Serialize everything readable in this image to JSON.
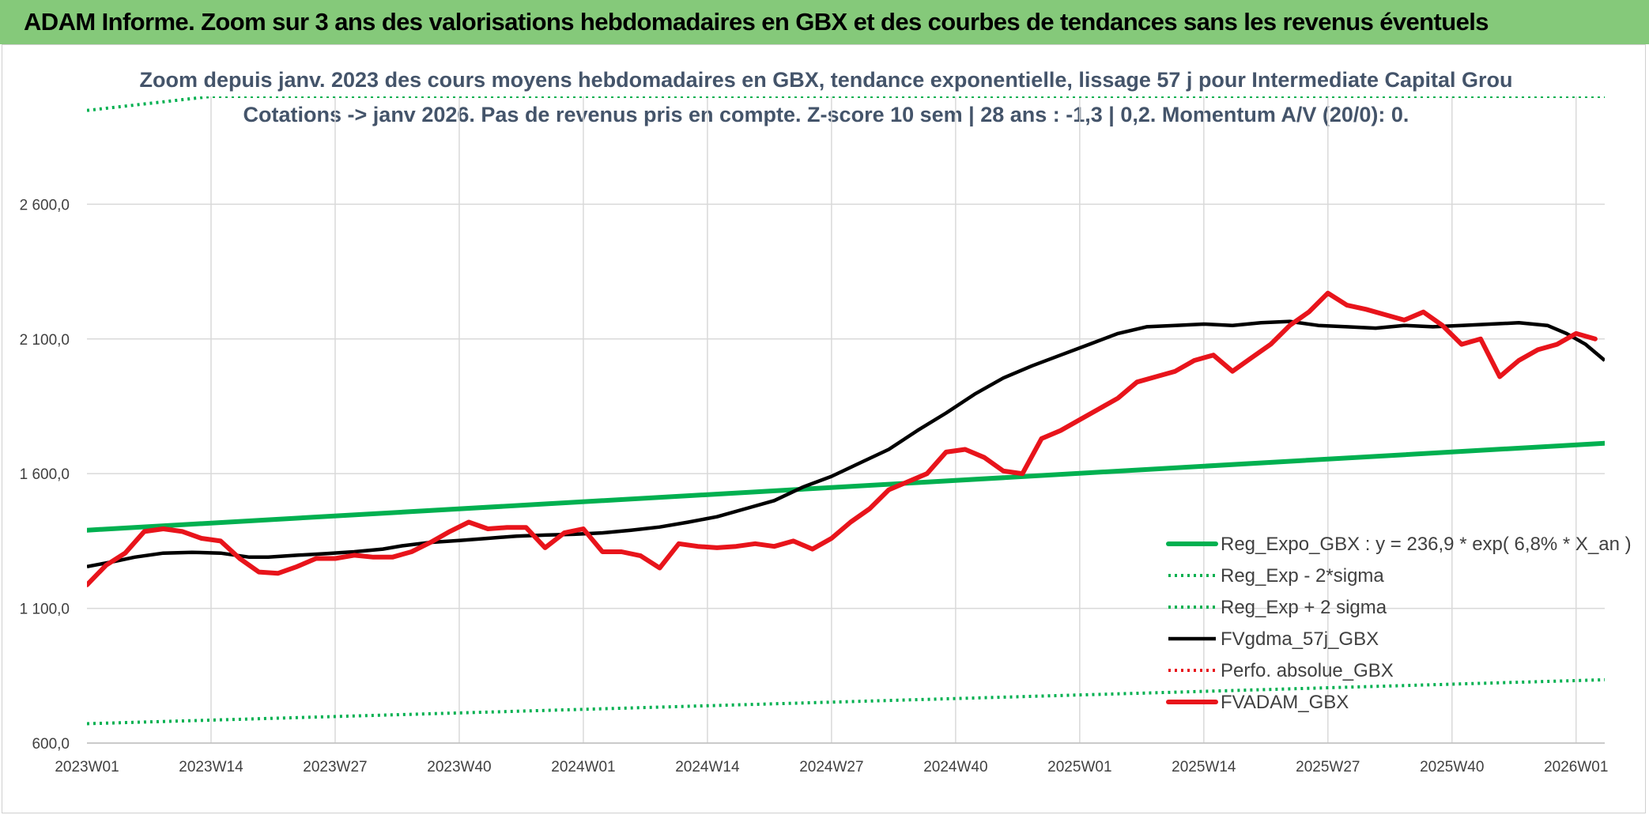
{
  "banner": {
    "title": "ADAM Informe. Zoom sur 3 ans des valorisations hebdomadaires en GBX et des courbes de tendances sans les revenus éventuels"
  },
  "colors": {
    "banner_bg": "#85c97a",
    "green": "#00b050",
    "black": "#000000",
    "red": "#e8141b",
    "grid": "#d9d9d9"
  },
  "chart_data": {
    "type": "line",
    "title_lines": [
      "Zoom depuis janv. 2023 des cours moyens hebdomadaires en GBX, tendance exponentielle, lissage 57 j pour Intermediate Capital Grou",
      "Cotations -> janv 2026. Pas de revenus pris en compte. Z-score 10 sem | 28 ans : -1,3 | 0,2. Momentum A/V (20/0): 0."
    ],
    "x_tick_labels": [
      "2023W01",
      "2023W14",
      "2023W27",
      "2023W40",
      "2024W01",
      "2024W14",
      "2024W27",
      "2024W40",
      "2025W01",
      "2025W14",
      "2025W27",
      "2025W40",
      "2026W01"
    ],
    "y_tick_values": [
      600,
      1100,
      1600,
      2100,
      2600
    ],
    "y_tick_labels": [
      "600,0",
      "1 100,0",
      "1 600,0",
      "2 100,0",
      "2 600,0"
    ],
    "ylim": [
      600,
      3000
    ],
    "week_count": 160,
    "legend_position": "bottom-right",
    "series": [
      {
        "name": "Reg_Expo_GBX : y = 236,9 * exp( 6,8% *  X_an )",
        "style": "solid-thick",
        "color": "#00b050",
        "points": [
          [
            0,
            1390
          ],
          [
            159,
            1713
          ]
        ]
      },
      {
        "name": "Reg_Exp - 2*sigma",
        "style": "dotted",
        "color": "#00b050",
        "points": [
          [
            0,
            672
          ],
          [
            159,
            835
          ]
        ]
      },
      {
        "name": "Reg_Exp + 2 sigma",
        "style": "dotted",
        "color": "#00b050",
        "points": [
          [
            0,
            2948
          ],
          [
            13,
            3000
          ],
          [
            136,
            3000
          ],
          [
            159,
            3000
          ]
        ]
      },
      {
        "name": "FVgdma_57j_GBX",
        "style": "solid",
        "color": "#000000",
        "points": [
          [
            0,
            1255
          ],
          [
            3,
            1275
          ],
          [
            5,
            1290
          ],
          [
            8,
            1305
          ],
          [
            11,
            1308
          ],
          [
            14,
            1305
          ],
          [
            17,
            1290
          ],
          [
            19,
            1290
          ],
          [
            22,
            1297
          ],
          [
            25,
            1303
          ],
          [
            28,
            1310
          ],
          [
            31,
            1320
          ],
          [
            33,
            1332
          ],
          [
            36,
            1345
          ],
          [
            39,
            1352
          ],
          [
            42,
            1360
          ],
          [
            45,
            1368
          ],
          [
            48,
            1372
          ],
          [
            51,
            1375
          ],
          [
            54,
            1380
          ],
          [
            57,
            1390
          ],
          [
            60,
            1402
          ],
          [
            63,
            1420
          ],
          [
            66,
            1440
          ],
          [
            69,
            1470
          ],
          [
            72,
            1500
          ],
          [
            75,
            1550
          ],
          [
            78,
            1590
          ],
          [
            81,
            1640
          ],
          [
            84,
            1690
          ],
          [
            87,
            1760
          ],
          [
            90,
            1825
          ],
          [
            93,
            1895
          ],
          [
            96,
            1955
          ],
          [
            99,
            2000
          ],
          [
            102,
            2040
          ],
          [
            105,
            2080
          ],
          [
            108,
            2120
          ],
          [
            111,
            2145
          ],
          [
            114,
            2150
          ],
          [
            117,
            2155
          ],
          [
            120,
            2150
          ],
          [
            123,
            2160
          ],
          [
            126,
            2165
          ],
          [
            129,
            2150
          ],
          [
            132,
            2145
          ],
          [
            135,
            2140
          ],
          [
            138,
            2150
          ],
          [
            141,
            2145
          ],
          [
            144,
            2150
          ],
          [
            147,
            2155
          ],
          [
            150,
            2160
          ],
          [
            153,
            2150
          ],
          [
            155,
            2120
          ],
          [
            157,
            2080
          ],
          [
            159,
            2020
          ]
        ]
      },
      {
        "name": "Perfo. absolue_GBX",
        "style": "dotted",
        "color": "#e8141b",
        "points": []
      },
      {
        "name": "FVADAM_GBX",
        "style": "solid-thick",
        "color": "#e8141b",
        "points": [
          [
            0,
            1187
          ],
          [
            2,
            1260
          ],
          [
            4,
            1305
          ],
          [
            6,
            1385
          ],
          [
            8,
            1395
          ],
          [
            10,
            1385
          ],
          [
            12,
            1360
          ],
          [
            14,
            1350
          ],
          [
            16,
            1285
          ],
          [
            18,
            1235
          ],
          [
            20,
            1230
          ],
          [
            22,
            1255
          ],
          [
            24,
            1285
          ],
          [
            26,
            1285
          ],
          [
            28,
            1297
          ],
          [
            30,
            1290
          ],
          [
            32,
            1290
          ],
          [
            34,
            1310
          ],
          [
            36,
            1345
          ],
          [
            38,
            1385
          ],
          [
            40,
            1420
          ],
          [
            42,
            1395
          ],
          [
            44,
            1400
          ],
          [
            46,
            1400
          ],
          [
            48,
            1325
          ],
          [
            50,
            1380
          ],
          [
            52,
            1395
          ],
          [
            54,
            1310
          ],
          [
            56,
            1310
          ],
          [
            58,
            1295
          ],
          [
            60,
            1250
          ],
          [
            62,
            1340
          ],
          [
            64,
            1330
          ],
          [
            66,
            1325
          ],
          [
            68,
            1330
          ],
          [
            70,
            1340
          ],
          [
            72,
            1330
          ],
          [
            74,
            1350
          ],
          [
            76,
            1320
          ],
          [
            78,
            1360
          ],
          [
            80,
            1420
          ],
          [
            82,
            1470
          ],
          [
            84,
            1540
          ],
          [
            86,
            1570
          ],
          [
            88,
            1600
          ],
          [
            90,
            1680
          ],
          [
            92,
            1690
          ],
          [
            94,
            1660
          ],
          [
            96,
            1610
          ],
          [
            98,
            1600
          ],
          [
            100,
            1730
          ],
          [
            102,
            1760
          ],
          [
            104,
            1800
          ],
          [
            106,
            1840
          ],
          [
            108,
            1880
          ],
          [
            110,
            1940
          ],
          [
            112,
            1960
          ],
          [
            114,
            1980
          ],
          [
            116,
            2020
          ],
          [
            118,
            2040
          ],
          [
            120,
            1980
          ],
          [
            122,
            2030
          ],
          [
            124,
            2080
          ],
          [
            126,
            2150
          ],
          [
            128,
            2200
          ],
          [
            130,
            2270
          ],
          [
            132,
            2225
          ],
          [
            134,
            2210
          ],
          [
            136,
            2190
          ],
          [
            138,
            2170
          ],
          [
            140,
            2200
          ],
          [
            142,
            2150
          ],
          [
            144,
            2080
          ],
          [
            146,
            2100
          ],
          [
            148,
            1960
          ],
          [
            150,
            2020
          ],
          [
            152,
            2060
          ],
          [
            154,
            2080
          ],
          [
            156,
            2120
          ],
          [
            158,
            2100
          ]
        ]
      }
    ]
  }
}
